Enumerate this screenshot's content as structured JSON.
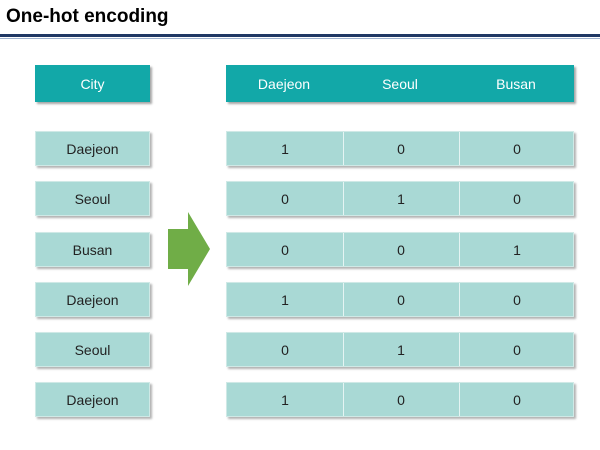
{
  "title": "One-hot encoding",
  "colors": {
    "header": "#12a8a8",
    "cell": "#a9d9d5",
    "arrow": "#70ad47",
    "rule": "#1f3864"
  },
  "arrow_icon": "right-arrow",
  "input": {
    "header": "City",
    "values": [
      "Daejeon",
      "Seoul",
      "Busan",
      "Daejeon",
      "Seoul",
      "Daejeon"
    ]
  },
  "output": {
    "headers": [
      "Daejeon",
      "Seoul",
      "Busan"
    ],
    "rows": [
      [
        "1",
        "0",
        "0"
      ],
      [
        "0",
        "1",
        "0"
      ],
      [
        "0",
        "0",
        "1"
      ],
      [
        "1",
        "0",
        "0"
      ],
      [
        "0",
        "1",
        "0"
      ],
      [
        "1",
        "0",
        "0"
      ]
    ]
  }
}
